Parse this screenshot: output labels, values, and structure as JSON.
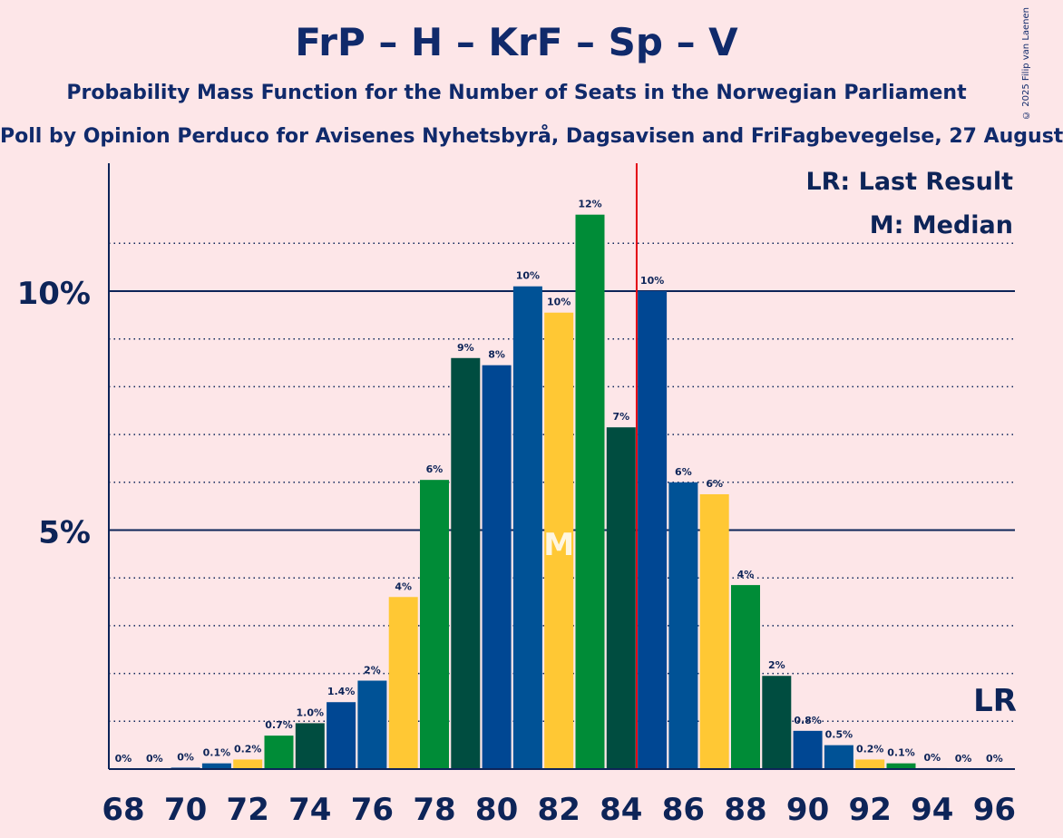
{
  "chart_data": {
    "type": "bar",
    "title": "FrP – H – KrF – Sp – V",
    "subtitle": "Probability Mass Function for the Number of Seats in the Norwegian Parliament",
    "subsubtitle": "Poll by Opinion Perduco for Avisenes Nyhetsbyrå, Dagsavisen and FriFagbevegelse, 27 August",
    "copyright": "© 2025 Filip van Laenen",
    "xlabel": "",
    "ylabel": "",
    "categories": [
      68,
      69,
      70,
      71,
      72,
      73,
      74,
      75,
      76,
      77,
      78,
      79,
      80,
      81,
      82,
      83,
      84,
      85,
      86,
      87,
      88,
      89,
      90,
      91,
      92,
      93,
      94,
      95,
      96
    ],
    "values": [
      0,
      0,
      0.03,
      0.12,
      0.2,
      0.7,
      0.96,
      1.4,
      1.85,
      3.6,
      6.05,
      8.6,
      8.45,
      10.1,
      9.55,
      11.6,
      7.15,
      10.0,
      6.0,
      5.75,
      3.85,
      1.95,
      0.8,
      0.5,
      0.2,
      0.12,
      0.02,
      0,
      0
    ],
    "labels": [
      "0%",
      "0%",
      "0%",
      "0.1%",
      "0.2%",
      "0.7%",
      "1.0%",
      "1.4%",
      "2%",
      "4%",
      "6%",
      "9%",
      "8%",
      "10%",
      "10%",
      "12%",
      "7%",
      "10%",
      "6%",
      "6%",
      "4%",
      "2%",
      "0.8%",
      "0.5%",
      "0.2%",
      "0.1%",
      "0%",
      "0%",
      "0%"
    ],
    "x_tick_labels": [
      "68",
      "70",
      "72",
      "74",
      "76",
      "78",
      "80",
      "82",
      "84",
      "86",
      "88",
      "90",
      "92",
      "94",
      "96"
    ],
    "y_tick_labels": [
      "5%",
      "10%"
    ],
    "ylim": [
      0,
      12.6
    ],
    "median_seat": 82,
    "median_label": "M",
    "last_result_label": "LR",
    "majority_line_after_seat": 84,
    "legend": [
      "LR: Last Result",
      "M: Median"
    ],
    "colors": {
      "green": "#008c37",
      "darkgreen": "#004d40",
      "navy": "#004793",
      "blue": "#005296",
      "yellow": "#ffc834",
      "majority": "#e30613",
      "axis": "#0d2458"
    },
    "bar_colors": [
      "green",
      "darkgreen",
      "navy",
      "blue",
      "yellow",
      "green",
      "darkgreen",
      "navy",
      "blue",
      "yellow",
      "green",
      "darkgreen",
      "navy",
      "blue",
      "yellow",
      "green",
      "darkgreen",
      "navy",
      "blue",
      "yellow",
      "green",
      "darkgreen",
      "navy",
      "blue",
      "yellow",
      "green",
      "darkgreen",
      "navy",
      "blue"
    ]
  }
}
